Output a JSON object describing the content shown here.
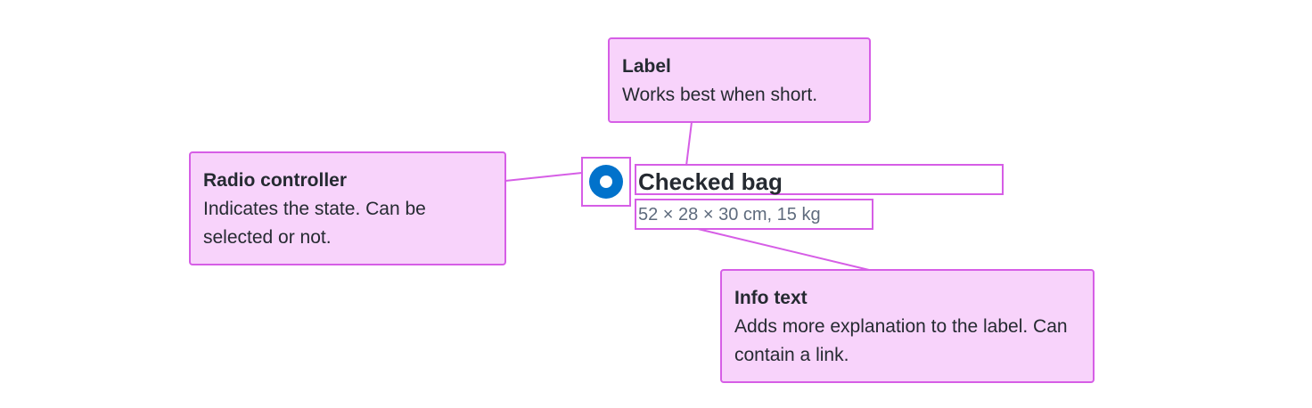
{
  "radio_option": {
    "checked": true,
    "label": "Checked bag",
    "info": "52 × 28 × 30 cm, 15 kg"
  },
  "callouts": {
    "label": {
      "title": "Label",
      "text": "Works best when short."
    },
    "radio_controller": {
      "title": "Radio controller",
      "text": "Indicates the state. Can be selected or not."
    },
    "info_text": {
      "title": "Info text",
      "text": "Adds more explanation to the label. Can contain a link."
    }
  },
  "colors": {
    "callout_fill": "#f8d3fb",
    "callout_border": "#d65ee6",
    "radio_checked": "#0172cb",
    "label_text": "#252a31",
    "info_text": "#5e6b7d"
  }
}
